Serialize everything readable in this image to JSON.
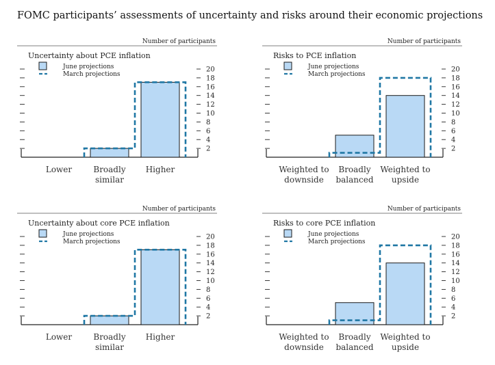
{
  "page_title": "FOMC participants’ assessments of uncertainty and risks around their economic projections",
  "units_label": "Number of participants",
  "legend": {
    "june": "June projections",
    "march": "March projections"
  },
  "colors": {
    "june_fill": "#b9d9f5",
    "june_stroke": "#1a1a1a",
    "march_stroke": "#1f77a4",
    "axis": "#222222"
  },
  "chart_data": [
    {
      "type": "bar",
      "title": "Uncertainty about PCE inflation",
      "categories": [
        [
          "Lower"
        ],
        [
          "Broadly",
          "similar"
        ],
        [
          "Higher"
        ]
      ],
      "series": [
        {
          "name": "June projections",
          "values": [
            0,
            2,
            17
          ]
        },
        {
          "name": "March projections",
          "values": [
            0,
            2,
            17
          ]
        }
      ],
      "ylabel": "Number of participants",
      "yticks": [
        2,
        4,
        6,
        8,
        10,
        12,
        14,
        16,
        18,
        20
      ],
      "ylim": [
        0,
        20
      ],
      "legend_position": "top-left"
    },
    {
      "type": "bar",
      "title": "Risks to PCE inflation",
      "categories": [
        [
          "Weighted to",
          "downside"
        ],
        [
          "Broadly",
          "balanced"
        ],
        [
          "Weighted to",
          "upside"
        ]
      ],
      "series": [
        {
          "name": "June projections",
          "values": [
            0,
            5,
            14
          ]
        },
        {
          "name": "March projections",
          "values": [
            0,
            1,
            18
          ]
        }
      ],
      "ylabel": "Number of participants",
      "yticks": [
        2,
        4,
        6,
        8,
        10,
        12,
        14,
        16,
        18,
        20
      ],
      "ylim": [
        0,
        20
      ],
      "legend_position": "top-left"
    },
    {
      "type": "bar",
      "title": "Uncertainty about core PCE inflation",
      "categories": [
        [
          "Lower"
        ],
        [
          "Broadly",
          "similar"
        ],
        [
          "Higher"
        ]
      ],
      "series": [
        {
          "name": "June projections",
          "values": [
            0,
            2,
            17
          ]
        },
        {
          "name": "March projections",
          "values": [
            0,
            2,
            17
          ]
        }
      ],
      "ylabel": "Number of participants",
      "yticks": [
        2,
        4,
        6,
        8,
        10,
        12,
        14,
        16,
        18,
        20
      ],
      "ylim": [
        0,
        20
      ],
      "legend_position": "top-left"
    },
    {
      "type": "bar",
      "title": "Risks to core PCE inflation",
      "categories": [
        [
          "Weighted to",
          "downside"
        ],
        [
          "Broadly",
          "balanced"
        ],
        [
          "Weighted to",
          "upside"
        ]
      ],
      "series": [
        {
          "name": "June projections",
          "values": [
            0,
            5,
            14
          ]
        },
        {
          "name": "March projections",
          "values": [
            0,
            1,
            18
          ]
        }
      ],
      "ylabel": "Number of participants",
      "yticks": [
        2,
        4,
        6,
        8,
        10,
        12,
        14,
        16,
        18,
        20
      ],
      "ylim": [
        0,
        20
      ],
      "legend_position": "top-left"
    }
  ]
}
